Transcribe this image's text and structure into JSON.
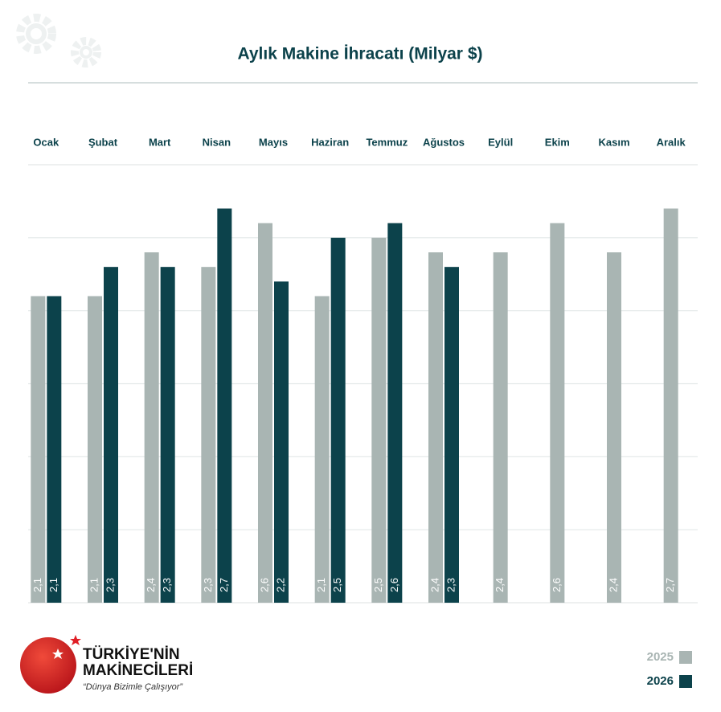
{
  "chart_data": {
    "type": "bar",
    "title": "Aylık Makine İhracatı (Milyar $)",
    "categories": [
      "Ocak",
      "Şubat",
      "Mart",
      "Nisan",
      "Mayıs",
      "Haziran",
      "Temmuz",
      "Ağustos",
      "Eylül",
      "Ekim",
      "Kasım",
      "Aralık"
    ],
    "series": [
      {
        "name": "2025",
        "color": "#a9b5b3",
        "values": [
          2.1,
          2.1,
          2.4,
          2.3,
          2.6,
          2.1,
          2.5,
          2.4,
          2.4,
          2.6,
          2.4,
          2.7
        ],
        "value_labels": [
          "2,1",
          "2,1",
          "2,4",
          "2,3",
          "2,6",
          "2,1",
          "2,5",
          "2,4",
          "2,4",
          "2,6",
          "2,4",
          "2,7"
        ]
      },
      {
        "name": "2026",
        "color": "#0c424b",
        "values": [
          2.1,
          2.3,
          2.3,
          2.7,
          2.2,
          2.5,
          2.6,
          2.3,
          null,
          null,
          null,
          null
        ],
        "value_labels": [
          "2,1",
          "2,3",
          "2,3",
          "2,7",
          "2,2",
          "2,5",
          "2,6",
          "2,3",
          null,
          null,
          null,
          null
        ]
      }
    ],
    "ylim": [
      0,
      3
    ],
    "yticks": [
      0,
      0.5,
      1,
      1.5,
      2,
      2.5,
      3
    ],
    "grid": true,
    "legend": "bottom-right"
  },
  "brand": {
    "name_line1": "TÜRKİYE'NİN",
    "name_line2": "MAKİNECİLERİ",
    "tagline": "“Dünya Bizimle Çalışıyor”"
  }
}
